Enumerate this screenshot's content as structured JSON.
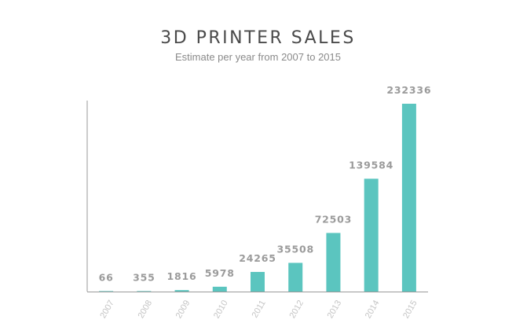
{
  "chart_data": {
    "type": "bar",
    "title": "3D PRINTER SALES",
    "subtitle": "Estimate per year from 2007 to 2015",
    "xlabel": "",
    "ylabel": "",
    "categories": [
      "2007",
      "2008",
      "2009",
      "2010",
      "2011",
      "2012",
      "2013",
      "2014",
      "2015"
    ],
    "values": [
      66,
      355,
      1816,
      5978,
      24265,
      35508,
      72503,
      139584,
      232336
    ],
    "data_labels": [
      "66",
      "355",
      "1816",
      "5978",
      "24265",
      "35508",
      "72503",
      "139584",
      "232336"
    ],
    "ylim": [
      0,
      232336
    ],
    "grid": false,
    "legend": "none",
    "bar_color": "#5bc5bf",
    "axis_color": "#9a9a9a"
  }
}
